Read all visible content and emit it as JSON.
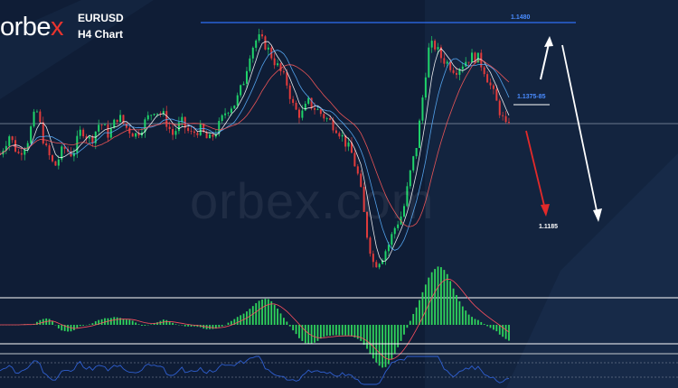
{
  "header": {
    "brand_main": "orbe",
    "brand_x": "x",
    "symbol": "EURUSD",
    "timeframe": "H4 Chart",
    "watermark": "orbex.com"
  },
  "colors": {
    "background": "#0f1d36",
    "bull_candle": "#1fd46a",
    "bear_candle": "#e23b3b",
    "resistance_line": "#2f6ff5",
    "level_label": "#4a8cff",
    "arrow_up": "#ffffff",
    "arrow_down_short": "#e22a2a",
    "arrow_down_long": "#ffffff",
    "panel_divider": "#ffffff",
    "histogram": "#2fd45c",
    "signal_line": "#ff5060",
    "oscillator_line": "#2f5fd0"
  },
  "levels": {
    "resistance": "1.1480",
    "mid": "1.1375-85",
    "target": "1.1185"
  },
  "chart_data": {
    "type": "candlestick",
    "symbol": "EURUSD",
    "timeframe": "H4",
    "yrange": [
      1.109,
      1.15
    ],
    "price_path": [
      [
        0,
        1.129
      ],
      [
        10,
        1.132
      ],
      [
        20,
        1.129
      ],
      [
        30,
        1.131
      ],
      [
        40,
        1.136
      ],
      [
        50,
        1.13
      ],
      [
        60,
        1.127
      ],
      [
        70,
        1.13
      ],
      [
        80,
        1.129
      ],
      [
        90,
        1.133
      ],
      [
        100,
        1.131
      ],
      [
        110,
        1.134
      ],
      [
        120,
        1.132
      ],
      [
        130,
        1.135
      ],
      [
        140,
        1.133
      ],
      [
        150,
        1.132
      ],
      [
        160,
        1.134
      ],
      [
        170,
        1.136
      ],
      [
        180,
        1.135
      ],
      [
        190,
        1.132
      ],
      [
        200,
        1.134
      ],
      [
        210,
        1.132
      ],
      [
        220,
        1.133
      ],
      [
        230,
        1.131
      ],
      [
        240,
        1.133
      ],
      [
        250,
        1.136
      ],
      [
        260,
        1.137
      ],
      [
        268,
        1.14
      ],
      [
        276,
        1.145
      ],
      [
        284,
        1.147
      ],
      [
        292,
        1.146
      ],
      [
        300,
        1.144
      ],
      [
        308,
        1.142
      ],
      [
        316,
        1.14
      ],
      [
        324,
        1.136
      ],
      [
        332,
        1.135
      ],
      [
        340,
        1.137
      ],
      [
        348,
        1.136
      ],
      [
        356,
        1.135
      ],
      [
        364,
        1.134
      ],
      [
        372,
        1.133
      ],
      [
        380,
        1.131
      ],
      [
        388,
        1.129
      ],
      [
        396,
        1.125
      ],
      [
        404,
        1.117
      ],
      [
        412,
        1.112
      ],
      [
        420,
        1.113
      ],
      [
        428,
        1.115
      ],
      [
        436,
        1.118
      ],
      [
        444,
        1.12
      ],
      [
        452,
        1.126
      ],
      [
        460,
        1.131
      ],
      [
        466,
        1.138
      ],
      [
        472,
        1.145
      ],
      [
        478,
        1.146
      ],
      [
        486,
        1.144
      ],
      [
        494,
        1.143
      ],
      [
        502,
        1.142
      ],
      [
        510,
        1.143
      ],
      [
        518,
        1.144
      ],
      [
        526,
        1.144
      ],
      [
        534,
        1.142
      ],
      [
        542,
        1.139
      ],
      [
        550,
        1.136
      ],
      [
        558,
        1.133
      ],
      [
        564,
        1.136
      ]
    ],
    "annotations": [
      {
        "type": "horizontal_line",
        "y": 1.148,
        "label": "1.1480"
      },
      {
        "type": "horizontal_line",
        "y": 1.1375,
        "label": "1.1375-85"
      },
      {
        "type": "arrow",
        "direction": "up",
        "color": "white"
      },
      {
        "type": "arrow",
        "direction": "down",
        "color": "red",
        "target": "1.1185"
      },
      {
        "type": "arrow",
        "direction": "down",
        "color": "white",
        "target": "1.1185"
      }
    ],
    "indicators": [
      {
        "name": "",
        "type": "histogram"
      },
      {
        "name": "",
        "type": "line"
      }
    ]
  }
}
